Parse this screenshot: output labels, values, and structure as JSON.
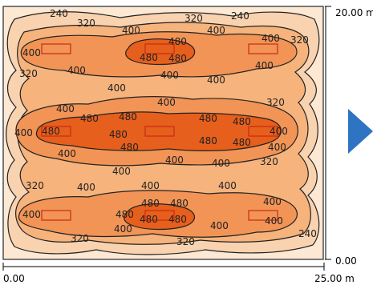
{
  "colors": {
    "level_below_240": "#fde8d4",
    "level_240": "#f9d2b0",
    "level_320": "#f6b37c",
    "level_400": "#f19456",
    "level_480": "#e65f1c",
    "luminaire_stroke": "#cc2a12",
    "arrow": "#2e74c3",
    "frame": "#444444"
  },
  "axes": {
    "x_start": "0.00",
    "x_end": "25.00 m",
    "y_start": "0.00",
    "y_end": "20.00 m"
  },
  "contour_labels": {
    "level_240": "240",
    "level_320": "320",
    "level_400": "400",
    "level_480": "480"
  },
  "luminaire_count": 9,
  "arrow_icon": "right-triangle-arrow"
}
